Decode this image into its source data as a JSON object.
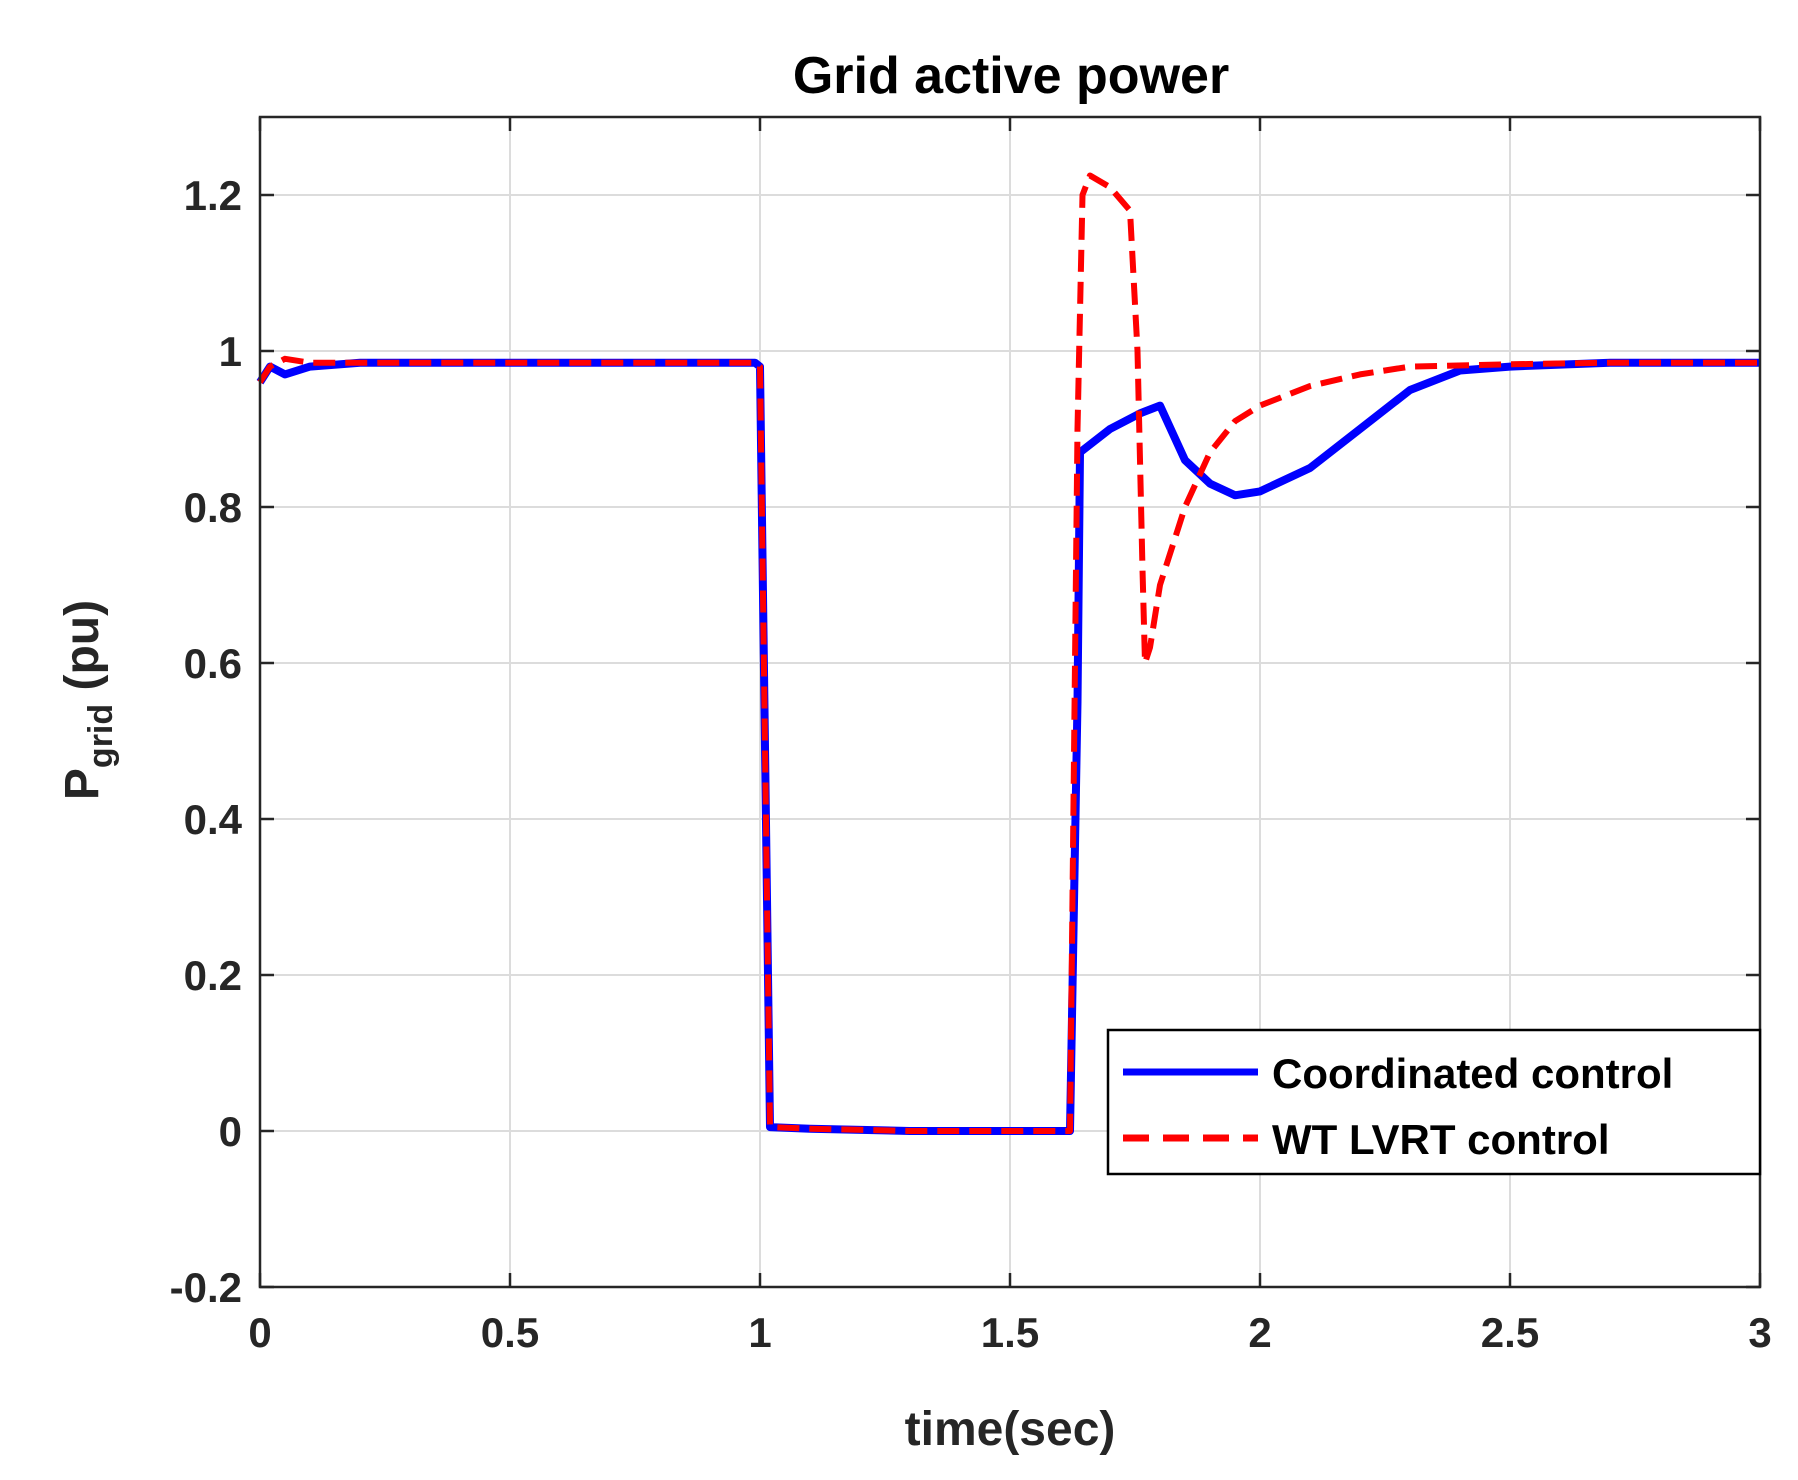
{
  "chart_data": {
    "type": "line",
    "title": "Grid active power",
    "xlabel": "time(sec)",
    "ylabel_main": "P",
    "ylabel_sub": "grid",
    "ylabel_unit": " (pu)",
    "xlim": [
      0,
      3
    ],
    "ylim": [
      -0.2,
      1.3
    ],
    "xticks": [
      0,
      0.5,
      1,
      1.5,
      2,
      2.5,
      3
    ],
    "xtick_labels": [
      "0",
      "0.5",
      "1",
      "1.5",
      "2",
      "2.5",
      "3"
    ],
    "yticks": [
      -0.2,
      0,
      0.2,
      0.4,
      0.6,
      0.8,
      1,
      1.2
    ],
    "ytick_labels": [
      "-0.2",
      "0",
      "0.2",
      "0.4",
      "0.6",
      "0.8",
      "1",
      "1.2"
    ],
    "grid": true,
    "legend_position": "bottom-right",
    "series": [
      {
        "name": "Coordinated control",
        "color": "#0000ff",
        "style": "solid",
        "x": [
          0,
          0.02,
          0.05,
          0.1,
          0.2,
          0.4,
          0.6,
          0.8,
          0.99,
          1.0,
          1.02,
          1.1,
          1.3,
          1.5,
          1.62,
          1.635,
          1.64,
          1.7,
          1.76,
          1.8,
          1.85,
          1.9,
          1.95,
          2.0,
          2.1,
          2.2,
          2.3,
          2.4,
          2.5,
          2.7,
          3.0
        ],
        "y": [
          0.96,
          0.98,
          0.97,
          0.98,
          0.985,
          0.985,
          0.985,
          0.985,
          0.985,
          0.98,
          0.005,
          0.003,
          0.0,
          0.0,
          0.0,
          0.55,
          0.87,
          0.9,
          0.92,
          0.93,
          0.86,
          0.83,
          0.815,
          0.82,
          0.85,
          0.9,
          0.95,
          0.975,
          0.98,
          0.985,
          0.985
        ]
      },
      {
        "name": "WT LVRT control",
        "color": "#ff0000",
        "style": "dashed",
        "x": [
          0,
          0.02,
          0.05,
          0.1,
          0.2,
          0.4,
          0.6,
          0.8,
          0.99,
          1.0,
          1.02,
          1.1,
          1.3,
          1.5,
          1.62,
          1.635,
          1.645,
          1.66,
          1.7,
          1.74,
          1.755,
          1.765,
          1.77,
          1.78,
          1.8,
          1.85,
          1.9,
          1.95,
          2.0,
          2.1,
          2.2,
          2.3,
          2.5,
          2.7,
          3.0
        ],
        "y": [
          0.96,
          0.98,
          0.99,
          0.985,
          0.985,
          0.985,
          0.985,
          0.985,
          0.985,
          0.98,
          0.005,
          0.003,
          0.0,
          0.0,
          0.0,
          0.9,
          1.2,
          1.225,
          1.21,
          1.18,
          1.0,
          0.72,
          0.6,
          0.62,
          0.7,
          0.8,
          0.87,
          0.91,
          0.93,
          0.955,
          0.97,
          0.98,
          0.983,
          0.985,
          0.985
        ]
      }
    ]
  }
}
